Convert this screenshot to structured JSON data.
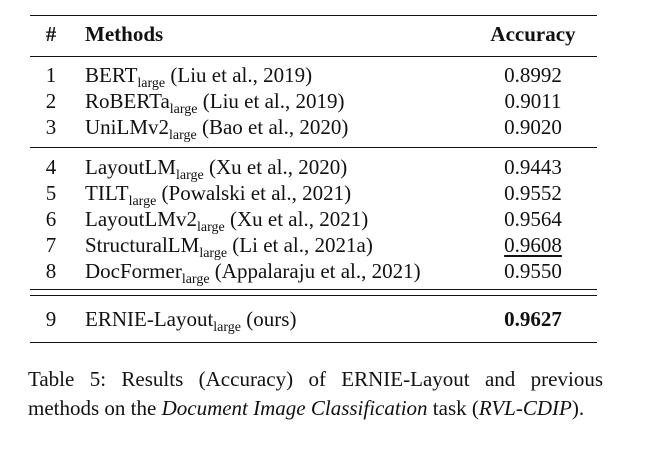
{
  "table": {
    "header": {
      "num": "#",
      "methods": "Methods",
      "accuracy": "Accuracy"
    },
    "rows": [
      {
        "num": "1",
        "name": "BERT",
        "sub": "large",
        "cite": " (Liu et al., 2019)",
        "acc": "0.8992"
      },
      {
        "num": "2",
        "name": "RoBERTa",
        "sub": "large",
        "cite": " (Liu et al., 2019)",
        "acc": "0.9011"
      },
      {
        "num": "3",
        "name": "UniLMv2",
        "sub": "large",
        "cite": " (Bao et al., 2020)",
        "acc": "0.9020"
      },
      {
        "num": "4",
        "name": "LayoutLM",
        "sub": "large",
        "cite": " (Xu et al., 2020)",
        "acc": "0.9443"
      },
      {
        "num": "5",
        "name": "TILT",
        "sub": "large",
        "cite": " (Powalski et al., 2021)",
        "acc": "0.9552"
      },
      {
        "num": "6",
        "name": "LayoutLMv2",
        "sub": "large",
        "cite": " (Xu et al., 2021)",
        "acc": "0.9564"
      },
      {
        "num": "7",
        "name": "StructuralLM",
        "sub": "large",
        "cite": " (Li et al., 2021a)",
        "acc": "0.9608"
      },
      {
        "num": "8",
        "name": "DocFormer",
        "sub": "large",
        "cite": " (Appalaraju et al., 2021)",
        "acc": "0.9550"
      },
      {
        "num": "9",
        "name": "ERNIE-Layout",
        "sub": "large",
        "cite": " (ours)",
        "acc": "0.9627"
      }
    ]
  },
  "caption": {
    "lead": "Table 5: Results (Accuracy) of ERNIE-Layout and previous methods on the ",
    "task_name": "Document Image Classification",
    "middle": " task (",
    "dataset": "RVL-CDIP",
    "end": ")."
  }
}
